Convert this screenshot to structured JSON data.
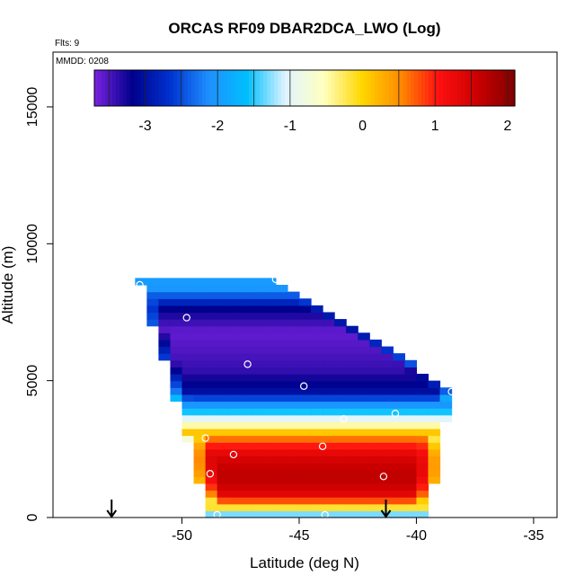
{
  "chart_data": {
    "type": "heatmap",
    "title": "ORCAS RF09 DBAR2DCA_LWO (Log)",
    "flights_note": "Flts: 9",
    "date_note": "MMDD: 0208",
    "xlabel": "Latitude (deg N)",
    "ylabel": "Altitude (m)",
    "xlim": [
      -55.5,
      -34.0
    ],
    "ylim": [
      0,
      17000
    ],
    "x_ticks": [
      -50,
      -45,
      -40,
      -35
    ],
    "y_ticks": [
      0,
      5000,
      10000,
      15000
    ],
    "colorbar": {
      "range": [
        -3.7,
        2.1
      ],
      "ticks": [
        -3,
        -2,
        -1,
        0,
        1,
        2
      ],
      "lines": [
        -3.5,
        -3,
        -2.5,
        -2,
        -1.5,
        -1,
        0.5,
        1,
        1.5,
        2
      ],
      "colors": [
        "#7a22e0",
        "#00008b",
        "#0033d0",
        "#1e90ff",
        "#00bfff",
        "#e0f4ff",
        "#ffffc0",
        "#ffd700",
        "#ff8c00",
        "#ff1010",
        "#cc0000",
        "#800000"
      ]
    },
    "field": {
      "y_top_left": 8700,
      "x_left_top": -51.8,
      "x_left_bottom": -48.8,
      "x_right_top": -46.0,
      "x_right_bottom": -39.5,
      "y_right_top": 4700,
      "layers": [
        {
          "alt": 8400,
          "value": -2.0
        },
        {
          "alt": 7600,
          "value": -3.2
        },
        {
          "alt": 6800,
          "value": -3.6
        },
        {
          "alt": 6000,
          "value": -3.5
        },
        {
          "alt": 5400,
          "value": -3.4
        },
        {
          "alt": 4600,
          "value": -3.0
        },
        {
          "alt": 4100,
          "value": -2.0
        },
        {
          "alt": 3700,
          "value": -1.2
        },
        {
          "alt": 3300,
          "value": -0.3
        },
        {
          "alt": 2900,
          "value": 0.6
        },
        {
          "alt": 2500,
          "value": 1.2
        },
        {
          "alt": 2100,
          "value": 1.5
        },
        {
          "alt": 1700,
          "value": 1.65
        },
        {
          "alt": 1300,
          "value": 1.65
        },
        {
          "alt": 900,
          "value": 1.4
        },
        {
          "alt": 500,
          "value": 0.5
        },
        {
          "alt": 150,
          "value": -1.3
        }
      ]
    },
    "sample_points": [
      {
        "lat": -51.8,
        "alt": 8500
      },
      {
        "lat": -46.0,
        "alt": 8700
      },
      {
        "lat": -49.8,
        "alt": 7300
      },
      {
        "lat": -52.3,
        "alt": 5800
      },
      {
        "lat": -47.2,
        "alt": 5600
      },
      {
        "lat": -44.8,
        "alt": 4800
      },
      {
        "lat": -43.1,
        "alt": 3600
      },
      {
        "lat": -40.9,
        "alt": 3800
      },
      {
        "lat": -38.5,
        "alt": 4600
      },
      {
        "lat": -49.0,
        "alt": 2900
      },
      {
        "lat": -44.0,
        "alt": 2600
      },
      {
        "lat": -47.8,
        "alt": 2300
      },
      {
        "lat": -48.8,
        "alt": 1600
      },
      {
        "lat": -41.4,
        "alt": 1500
      },
      {
        "lat": -48.5,
        "alt": 100
      },
      {
        "lat": -43.9,
        "alt": 100
      }
    ],
    "arrow_markers": [
      -53.0,
      -41.3
    ]
  }
}
